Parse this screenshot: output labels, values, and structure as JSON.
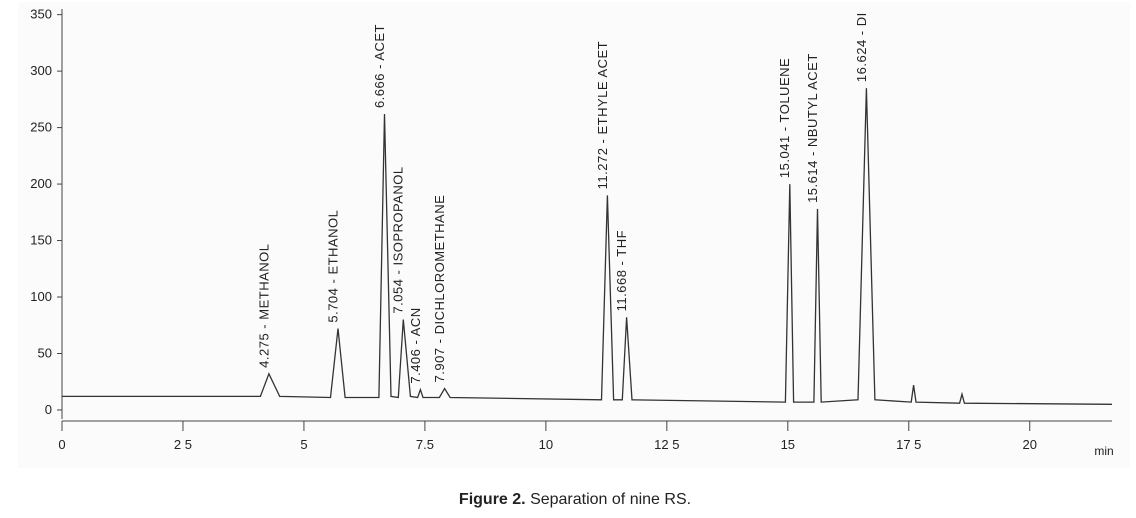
{
  "chart_data": {
    "type": "line",
    "x": [
      0,
      4.1,
      4.275,
      4.5,
      5.55,
      5.704,
      5.85,
      6.55,
      6.666,
      6.8,
      6.95,
      7.054,
      7.2,
      7.35,
      7.406,
      7.46,
      7.8,
      7.907,
      8.02,
      11.15,
      11.272,
      11.4,
      11.58,
      11.668,
      11.78,
      14.95,
      15.041,
      15.12,
      15.54,
      15.614,
      15.69,
      16.45,
      16.624,
      16.8,
      17.55,
      17.6,
      17.65,
      18.55,
      18.6,
      18.65,
      21.7
    ],
    "values": [
      12,
      12,
      32,
      12,
      11,
      72,
      11,
      11,
      262,
      12,
      11,
      80,
      12,
      11,
      18,
      11,
      11,
      19,
      11,
      9,
      190,
      9,
      9,
      82,
      9,
      7,
      200,
      7,
      7,
      178,
      7,
      9,
      285,
      9,
      7,
      22,
      7,
      6,
      14,
      6,
      5
    ],
    "color": "#333333",
    "xlim": [
      0,
      21.7
    ],
    "xticks": [
      0,
      {
        "value": 2.5,
        "label": "2 5"
      },
      5,
      7.5,
      10,
      {
        "value": 12.5,
        "label": "12 5"
      },
      15,
      {
        "value": 17.5,
        "label": "17 5"
      },
      20
    ],
    "x_label": "min",
    "ylim": [
      -8,
      355
    ],
    "yticks": [
      0,
      50,
      100,
      150,
      200,
      250,
      300,
      350
    ],
    "annotations": [
      {
        "text": "4.275 - METHANOL",
        "x": 4.275
      },
      {
        "text": "5.704 - ETHANOL",
        "x": 5.704
      },
      {
        "text": "6.666 - ACET",
        "x": 6.666
      },
      {
        "text": "7.054 - ISOPROPANOL",
        "x": 7.054
      },
      {
        "text": "7.406 - ACN",
        "x": 7.406
      },
      {
        "text": "7.907 - DICHLOROMETHANE",
        "x": 7.907
      },
      {
        "text": "11.272 - ETHYLE ACET",
        "x": 11.272
      },
      {
        "text": "11.668 - THF",
        "x": 11.668
      },
      {
        "text": "15.041 - TOLUENE",
        "x": 15.041
      },
      {
        "text": "15.614 - NBUTYL ACET",
        "x": 15.614
      },
      {
        "text": "16.624 - DI",
        "x": 16.624
      }
    ],
    "caption_label": "Figure 2.",
    "caption": "Separation of nine RS."
  }
}
